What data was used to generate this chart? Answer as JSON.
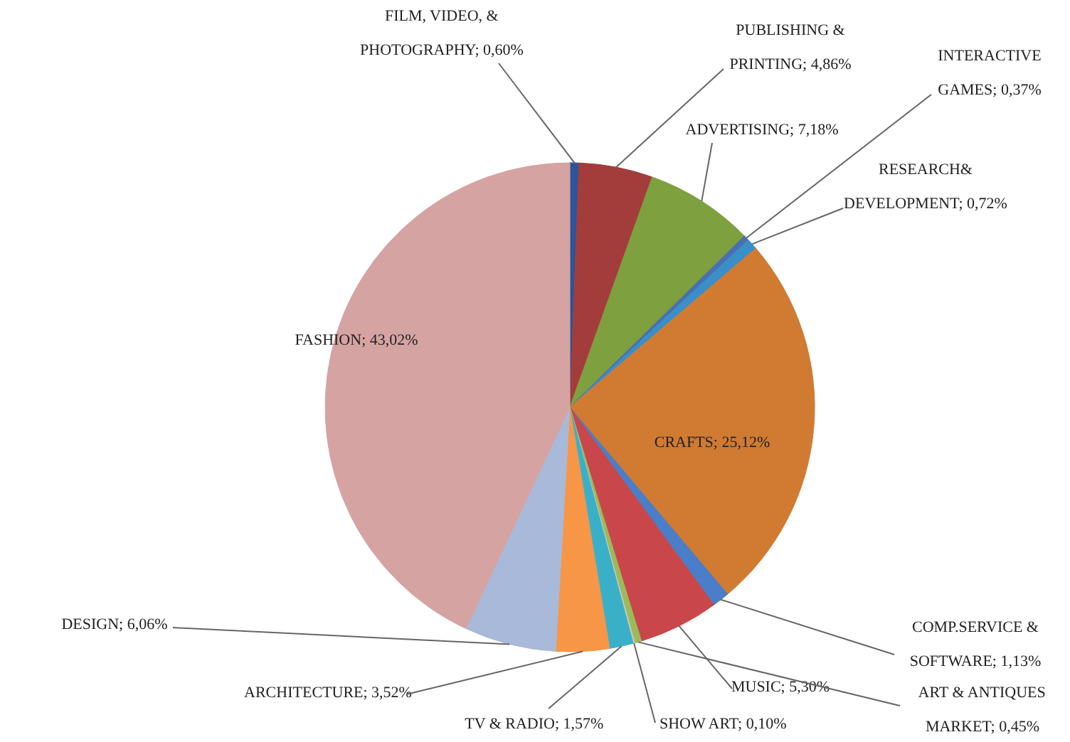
{
  "chart_data": {
    "type": "pie",
    "categories": [
      "FILM, VIDEO, & PHOTOGRAPHY",
      "PUBLISHING & PRINTING",
      "ADVERTISING",
      "INTERACTIVE GAMES",
      "RESEARCH& DEVELOPMENT",
      "CRAFTS",
      "COMP.SERVICE & SOFTWARE",
      "MUSIC",
      "ART & ANTIQUES MARKET",
      "SHOW ART",
      "TV & RADIO",
      "ARCHITECTURE",
      "DESIGN",
      "FASHION"
    ],
    "values": [
      0.6,
      4.86,
      7.18,
      0.37,
      0.72,
      25.12,
      1.13,
      5.3,
      0.45,
      0.1,
      1.57,
      3.52,
      6.06,
      43.02
    ],
    "value_labels": [
      "0,60%",
      "4,86%",
      "7,18%",
      "0,37%",
      "0,72%",
      "25,12%",
      "1,13%",
      "5,30%",
      "0,45%",
      "0,10%",
      "1,57%",
      "3,52%",
      "6,06%",
      "43,02%"
    ],
    "colors": [
      "#2e5597",
      "#a33d3b",
      "#7ea03e",
      "#4a6fb0",
      "#3a8fc8",
      "#d07a32",
      "#4a7ec8",
      "#c9474a",
      "#9bbb59",
      "#c8c8c8",
      "#3ab0c8",
      "#f79646",
      "#a9b9d9",
      "#d6a3a3"
    ]
  }
}
